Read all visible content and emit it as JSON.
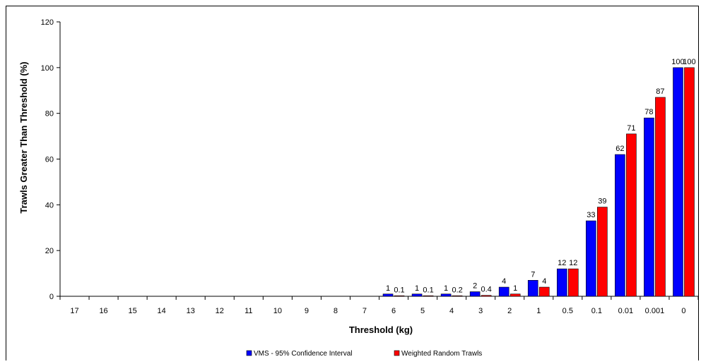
{
  "chart_data": {
    "type": "bar",
    "xlabel": "Threshold (kg)",
    "ylabel": "Trawls Greater Than Threshold (%)",
    "ylim": [
      0,
      120
    ],
    "yticks": [
      0,
      20,
      40,
      60,
      80,
      100,
      120
    ],
    "grid": false,
    "legend_position": "bottom-center",
    "categories": [
      "17",
      "16",
      "15",
      "14",
      "13",
      "12",
      "11",
      "10",
      "9",
      "8",
      "7",
      "6",
      "5",
      "4",
      "3",
      "2",
      "1",
      "0.5",
      "0.1",
      "0.01",
      "0.001",
      "0"
    ],
    "series": [
      {
        "name": "VMS - 95% Confidence Interval",
        "color": "#0000ff",
        "values": [
          0,
          0,
          0,
          0,
          0,
          0,
          0,
          0,
          0,
          0,
          0,
          1,
          1,
          1,
          2,
          4,
          7,
          12,
          33,
          62,
          78,
          100
        ],
        "labels": [
          "",
          "",
          "",
          "",
          "",
          "",
          "",
          "",
          "",
          "",
          "",
          "1",
          "1",
          "1",
          "2",
          "4",
          "7",
          "12",
          "33",
          "62",
          "78",
          "100"
        ]
      },
      {
        "name": "Weighted Random Trawls",
        "color": "#ff0000",
        "values": [
          0,
          0,
          0,
          0,
          0,
          0,
          0,
          0,
          0,
          0,
          0,
          0.1,
          0.1,
          0.2,
          0.4,
          1,
          4,
          12,
          39,
          71,
          87,
          100
        ],
        "labels": [
          "",
          "",
          "",
          "",
          "",
          "",
          "",
          "",
          "",
          "",
          "",
          "0.1",
          "0.1",
          "0.2",
          "0.4",
          "1",
          "4",
          "12",
          "39",
          "71",
          "87",
          "100"
        ]
      }
    ]
  }
}
